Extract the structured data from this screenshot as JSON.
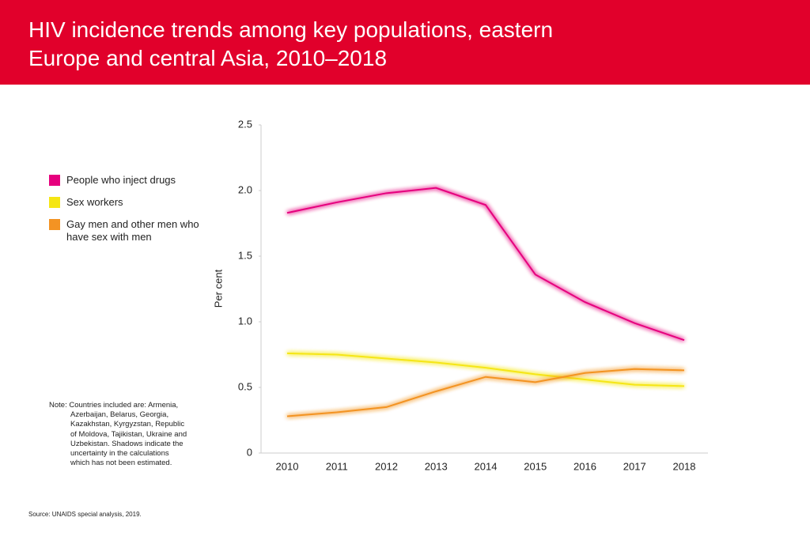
{
  "chart_data": {
    "type": "line",
    "title": "HIV incidence trends among key populations, eastern Europe and central Asia, 2010–2018",
    "y_label": "Per cent",
    "categories": [
      "2010",
      "2011",
      "2012",
      "2013",
      "2014",
      "2015",
      "2016",
      "2017",
      "2018"
    ],
    "series": [
      {
        "name": "People who inject drugs",
        "color": "#e6007e",
        "values": [
          1.83,
          1.91,
          1.98,
          2.02,
          1.89,
          1.36,
          1.15,
          0.99,
          0.86
        ]
      },
      {
        "name": "Sex workers",
        "color": "#f5e614",
        "values": [
          0.76,
          0.75,
          0.72,
          0.69,
          0.65,
          0.6,
          0.56,
          0.52,
          0.51
        ]
      },
      {
        "name": "Gay men and other men who have sex with men",
        "color": "#f39323",
        "values": [
          0.28,
          0.31,
          0.35,
          0.47,
          0.58,
          0.54,
          0.61,
          0.64,
          0.63
        ]
      }
    ],
    "ylim": [
      0,
      2.5
    ],
    "yticks": [
      0,
      {
        "value": 0.5,
        "label": "0.5"
      },
      {
        "value": 1,
        "label": "1.0"
      },
      {
        "value": 1.5,
        "label": "1.5"
      },
      {
        "value": 2,
        "label": "2.0"
      },
      {
        "value": 2.5,
        "label": "2.5"
      }
    ],
    "grid": false,
    "note": "Note: Countries included are: Armenia, Azerbaijan, Belarus, Georgia, Kazakhstan, Kyrgyzstan, Republic of Moldova, Tajikistan, Ukraine and Uzbekistan. Shadows indicate the uncertainty in the calculations which has not been estimated.",
    "source": "Source: UNAIDS special analysis, 2019."
  }
}
